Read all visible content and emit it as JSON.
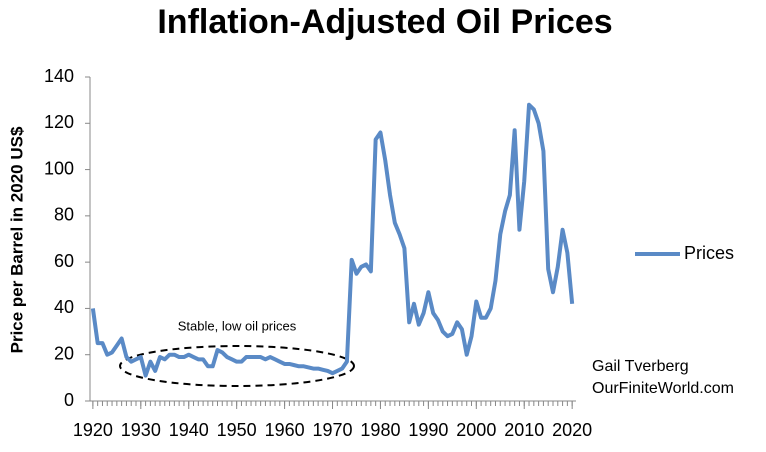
{
  "chart_data": {
    "type": "line",
    "title": "Inflation-Adjusted Oil Prices",
    "y_label": "Price per Barrel in 2020 US$",
    "annotations": [
      "Stable, low oil prices",
      "Gail Tverberg",
      "OurFiniteWorld.com"
    ],
    "x": [
      1920,
      1921,
      1922,
      1923,
      1924,
      1925,
      1926,
      1927,
      1928,
      1929,
      1930,
      1931,
      1932,
      1933,
      1934,
      1935,
      1936,
      1937,
      1938,
      1939,
      1940,
      1941,
      1942,
      1943,
      1944,
      1945,
      1946,
      1947,
      1948,
      1949,
      1950,
      1951,
      1952,
      1953,
      1954,
      1955,
      1956,
      1957,
      1958,
      1959,
      1960,
      1961,
      1962,
      1963,
      1964,
      1965,
      1966,
      1967,
      1968,
      1969,
      1970,
      1971,
      1972,
      1973,
      1974,
      1975,
      1976,
      1977,
      1978,
      1979,
      1980,
      1981,
      1982,
      1983,
      1984,
      1985,
      1986,
      1987,
      1988,
      1989,
      1990,
      1991,
      1992,
      1993,
      1994,
      1995,
      1996,
      1997,
      1998,
      1999,
      2000,
      2001,
      2002,
      2003,
      2004,
      2005,
      2006,
      2007,
      2008,
      2009,
      2010,
      2011,
      2012,
      2013,
      2014,
      2015,
      2016,
      2017,
      2018,
      2019,
      2020
    ],
    "series": [
      {
        "name": "Prices",
        "color": "#5a8ac6",
        "values": [
          40,
          25,
          25,
          20,
          21,
          24,
          27,
          19,
          17,
          18,
          19,
          11,
          17,
          13,
          19,
          18,
          20,
          20,
          19,
          19,
          20,
          19,
          18,
          18,
          15,
          15,
          22,
          21,
          19,
          18,
          17,
          17,
          19,
          19,
          19,
          19,
          18,
          19,
          18,
          17,
          16,
          16,
          15.5,
          15,
          15,
          14.5,
          14,
          14,
          13.5,
          13,
          12,
          13,
          14,
          17,
          61,
          55,
          58,
          59,
          56,
          113,
          116,
          104,
          89,
          77,
          72,
          66,
          34,
          42,
          33,
          38,
          47,
          38,
          35,
          30,
          28,
          29,
          34,
          31,
          20,
          28,
          43,
          36,
          36,
          40,
          52,
          72,
          82,
          89,
          117,
          74,
          95,
          128,
          126,
          120,
          108,
          57,
          47,
          58,
          74,
          64,
          42
        ]
      }
    ],
    "xlim": [
      1919.4,
      2020.8
    ],
    "xticks": [
      1920,
      1930,
      1940,
      1950,
      1960,
      1970,
      1980,
      1990,
      2000,
      2010,
      2020
    ],
    "ylim": [
      0,
      140
    ],
    "yticks": [
      0,
      20,
      40,
      60,
      80,
      100,
      120,
      140
    ],
    "grid": false,
    "legend": "right"
  }
}
